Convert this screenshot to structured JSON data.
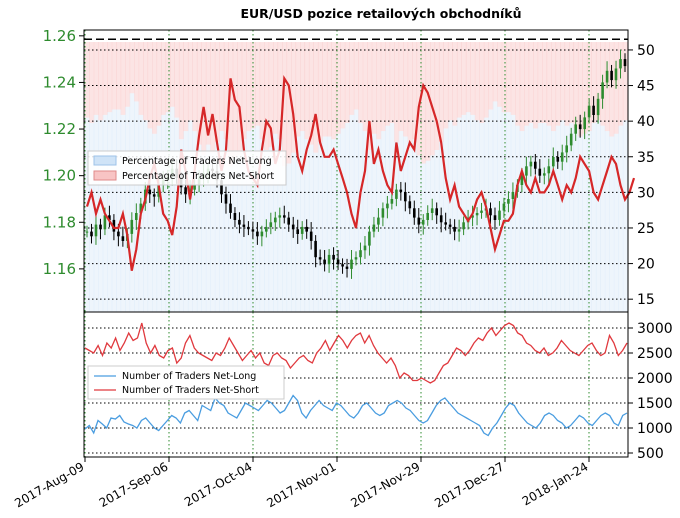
{
  "chart_data": [
    {
      "type": "candlestick+line",
      "title": "EUR/USD pozice retailových obchodníků",
      "x_tick_labels": [
        "2017-Aug-09",
        "2017-Sep-06",
        "2017-Oct-04",
        "2017-Nov-01",
        "2017-Nov-29",
        "2017-Dec-27",
        "2018-Jan-24"
      ],
      "x_range": [
        "2017-Aug-09",
        "2018-Feb-03"
      ],
      "left_axis": {
        "ticks": [
          "1.16",
          "1.18",
          "1.20",
          "1.22",
          "1.24",
          "1.26"
        ],
        "ylim": [
          1.1415,
          1.2625
        ],
        "color": "#2e8b2e"
      },
      "right_axis": {
        "ticks": [
          "15",
          "20",
          "25",
          "30",
          "35",
          "40",
          "45",
          "50"
        ],
        "ylim": [
          13.2,
          52.8
        ]
      },
      "grid": true,
      "reference_line_value": 51.5,
      "legend": {
        "position": "center-left",
        "entries": [
          "Percentage of Traders Net-Long",
          "Percentage of Traders Net-Short"
        ]
      },
      "colors": {
        "net_long_fill": "#cfe3f7",
        "net_short_fill": "#f8c4c4",
        "net_short_line": "#d62728",
        "candle": "#2e8b2e",
        "candle_down": "#000000"
      },
      "series": [
        {
          "name": "EUR/USD (approx. daily close)",
          "axis": "left",
          "values": [
            1.176,
            1.174,
            1.179,
            1.177,
            1.183,
            1.181,
            1.176,
            1.174,
            1.172,
            1.175,
            1.181,
            1.184,
            1.188,
            1.194,
            1.192,
            1.191,
            1.196,
            1.198,
            1.2,
            1.203,
            1.199,
            1.195,
            1.192,
            1.194,
            1.196,
            1.199,
            1.201,
            1.203,
            1.202,
            1.198,
            1.192,
            1.188,
            1.184,
            1.181,
            1.179,
            1.178,
            1.177,
            1.176,
            1.174,
            1.176,
            1.178,
            1.18,
            1.182,
            1.183,
            1.182,
            1.179,
            1.177,
            1.175,
            1.178,
            1.176,
            1.172,
            1.165,
            1.164,
            1.162,
            1.166,
            1.164,
            1.162,
            1.161,
            1.16,
            1.164,
            1.165,
            1.168,
            1.17,
            1.176,
            1.179,
            1.182,
            1.186,
            1.188,
            1.19,
            1.194,
            1.193,
            1.189,
            1.186,
            1.182,
            1.179,
            1.181,
            1.184,
            1.186,
            1.183,
            1.18,
            1.179,
            1.178,
            1.176,
            1.177,
            1.18,
            1.182,
            1.183,
            1.184,
            1.185,
            1.186,
            1.183,
            1.181,
            1.185,
            1.188,
            1.19,
            1.193,
            1.196,
            1.2,
            1.204,
            1.206,
            1.203,
            1.2,
            1.201,
            1.204,
            1.208,
            1.206,
            1.21,
            1.213,
            1.218,
            1.222,
            1.22,
            1.225,
            1.23,
            1.226,
            1.233,
            1.24,
            1.245,
            1.241,
            1.246,
            1.25,
            1.247
          ]
        },
        {
          "name": "Percentage of Traders Net-Short",
          "axis": "right",
          "values": [
            28,
            30,
            27,
            29,
            27,
            26,
            25,
            25,
            27,
            24,
            19,
            22,
            27,
            29,
            32,
            34,
            31,
            27,
            26,
            24,
            28,
            36,
            33,
            29,
            33,
            38,
            42,
            38,
            41,
            37,
            33,
            36,
            46,
            43,
            42,
            36,
            33,
            32,
            31,
            36,
            40,
            39,
            34,
            36,
            46,
            45,
            41,
            35,
            33,
            36,
            38,
            41,
            37,
            35,
            35,
            36,
            34,
            32,
            30,
            27,
            25,
            30,
            33,
            40,
            34,
            36,
            33,
            31,
            30,
            37,
            33,
            35,
            37,
            36,
            42,
            45,
            44,
            42,
            40,
            37,
            32,
            29,
            31,
            28,
            27,
            26,
            27,
            29,
            30,
            28,
            25,
            22,
            24,
            26,
            26,
            27,
            31,
            33,
            31,
            30,
            32,
            30,
            30,
            31,
            33,
            31,
            29,
            31,
            30,
            32,
            35,
            34,
            33,
            30,
            29,
            31,
            33,
            35,
            34,
            31,
            29,
            30,
            32
          ]
        }
      ]
    },
    {
      "type": "line",
      "x_range": [
        "2017-Aug-09",
        "2018-Feb-03"
      ],
      "right_axis": {
        "ticks": [
          "500",
          "1000",
          "1500",
          "2000",
          "2500",
          "3000"
        ],
        "ylim": [
          420,
          3320
        ]
      },
      "grid": true,
      "legend": {
        "position": "center-left",
        "entries": [
          "Number of Traders Net-Long",
          "Number of Traders Net-Short"
        ]
      },
      "colors": {
        "net_long": "#4a9de0",
        "net_short": "#e0393e"
      },
      "series": [
        {
          "name": "Number of Traders Net-Long",
          "values": [
            980,
            1050,
            900,
            1150,
            1080,
            1000,
            1200,
            1180,
            1250,
            1120,
            1080,
            1050,
            1000,
            1150,
            1200,
            1100,
            1000,
            950,
            1050,
            1150,
            1250,
            1200,
            1100,
            1300,
            1350,
            1250,
            1150,
            1450,
            1400,
            1350,
            1600,
            1500,
            1450,
            1300,
            1250,
            1200,
            1350,
            1500,
            1450,
            1400,
            1350,
            1450,
            1550,
            1500,
            1400,
            1300,
            1350,
            1500,
            1650,
            1550,
            1300,
            1200,
            1350,
            1450,
            1550,
            1450,
            1400,
            1350,
            1500,
            1450,
            1350,
            1250,
            1200,
            1300,
            1450,
            1500,
            1400,
            1300,
            1250,
            1300,
            1450,
            1500,
            1550,
            1500,
            1400,
            1350,
            1250,
            1150,
            1100,
            1150,
            1300,
            1450,
            1550,
            1600,
            1500,
            1400,
            1300,
            1250,
            1200,
            1150,
            1100,
            1050,
            900,
            850,
            1000,
            1100,
            1250,
            1400,
            1500,
            1450,
            1300,
            1200,
            1100,
            1050,
            1000,
            1100,
            1250,
            1300,
            1250,
            1150,
            1100,
            1000,
            1050,
            1150,
            1250,
            1200,
            1100,
            1050,
            1150,
            1250,
            1300,
            1250,
            1100,
            1050,
            1250,
            1300
          ]
        },
        {
          "name": "Number of Traders Net-Short",
          "values": [
            2600,
            2550,
            2500,
            2650,
            2450,
            2700,
            2600,
            2800,
            2550,
            2700,
            2900,
            2750,
            2800,
            3100,
            2700,
            2500,
            2650,
            2450,
            2400,
            2550,
            2600,
            2300,
            2400,
            2700,
            2850,
            2600,
            2500,
            2450,
            2400,
            2350,
            2500,
            2450,
            2600,
            2800,
            2650,
            2500,
            2350,
            2450,
            2550,
            2400,
            2500,
            2300,
            2250,
            2450,
            2500,
            2400,
            2350,
            2200,
            2300,
            2400,
            2450,
            2350,
            2300,
            2500,
            2600,
            2750,
            2550,
            2700,
            2850,
            2750,
            2600,
            2750,
            2850,
            2900,
            2700,
            2850,
            2650,
            2500,
            2400,
            2300,
            2400,
            2250,
            2000,
            2100,
            2050,
            1950,
            1950,
            2000,
            1950,
            1900,
            1950,
            2100,
            2250,
            2300,
            2450,
            2600,
            2550,
            2450,
            2550,
            2700,
            2800,
            2750,
            2900,
            3000,
            2850,
            2950,
            3050,
            3100,
            3050,
            2900,
            2850,
            2700,
            2650,
            2550,
            2500,
            2600,
            2450,
            2500,
            2600,
            2750,
            2650,
            2550,
            2500,
            2450,
            2550,
            2650,
            2700,
            2550,
            2450,
            2500,
            2850,
            2700,
            2450,
            2550,
            2700
          ]
        }
      ]
    }
  ]
}
